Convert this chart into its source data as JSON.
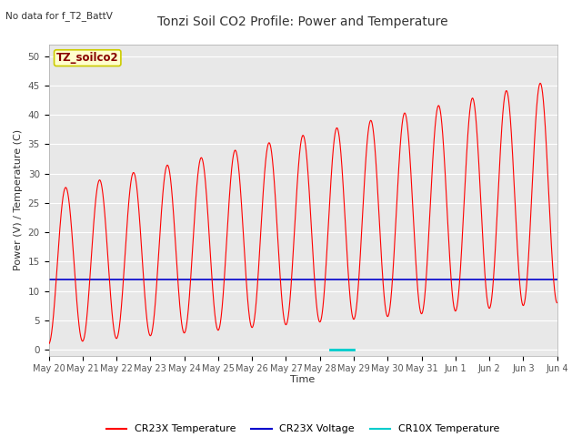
{
  "title": "Tonzi Soil CO2 Profile: Power and Temperature",
  "subtitle": "No data for f_T2_BattV",
  "ylabel": "Power (V) / Temperature (C)",
  "xlabel": "Time",
  "ylim": [
    -1,
    52
  ],
  "xlim_start": 0,
  "xlim_end": 15,
  "plot_bg_color": "#e8e8e8",
  "legend_label": "TZ_soilco2",
  "x_tick_labels": [
    "May 20",
    "May 21",
    "May 22",
    "May 23",
    "May 24",
    "May 25",
    "May 26",
    "May 27",
    "May 28",
    "May 29",
    "May 30",
    "May 31",
    "Jun 1",
    "Jun 2",
    "Jun 3",
    "Jun 4"
  ],
  "voltage_value": 12.0,
  "cr10x_x_start": 8.3,
  "cr10x_x_end": 9.0,
  "cr10x_y": 0.0,
  "series": {
    "cr23x_temp": {
      "color": "#ff0000",
      "label": "CR23X Temperature"
    },
    "cr23x_voltage": {
      "color": "#0000cc",
      "label": "CR23X Voltage"
    },
    "cr10x_temp": {
      "color": "#00cccc",
      "label": "CR10X Temperature"
    }
  }
}
